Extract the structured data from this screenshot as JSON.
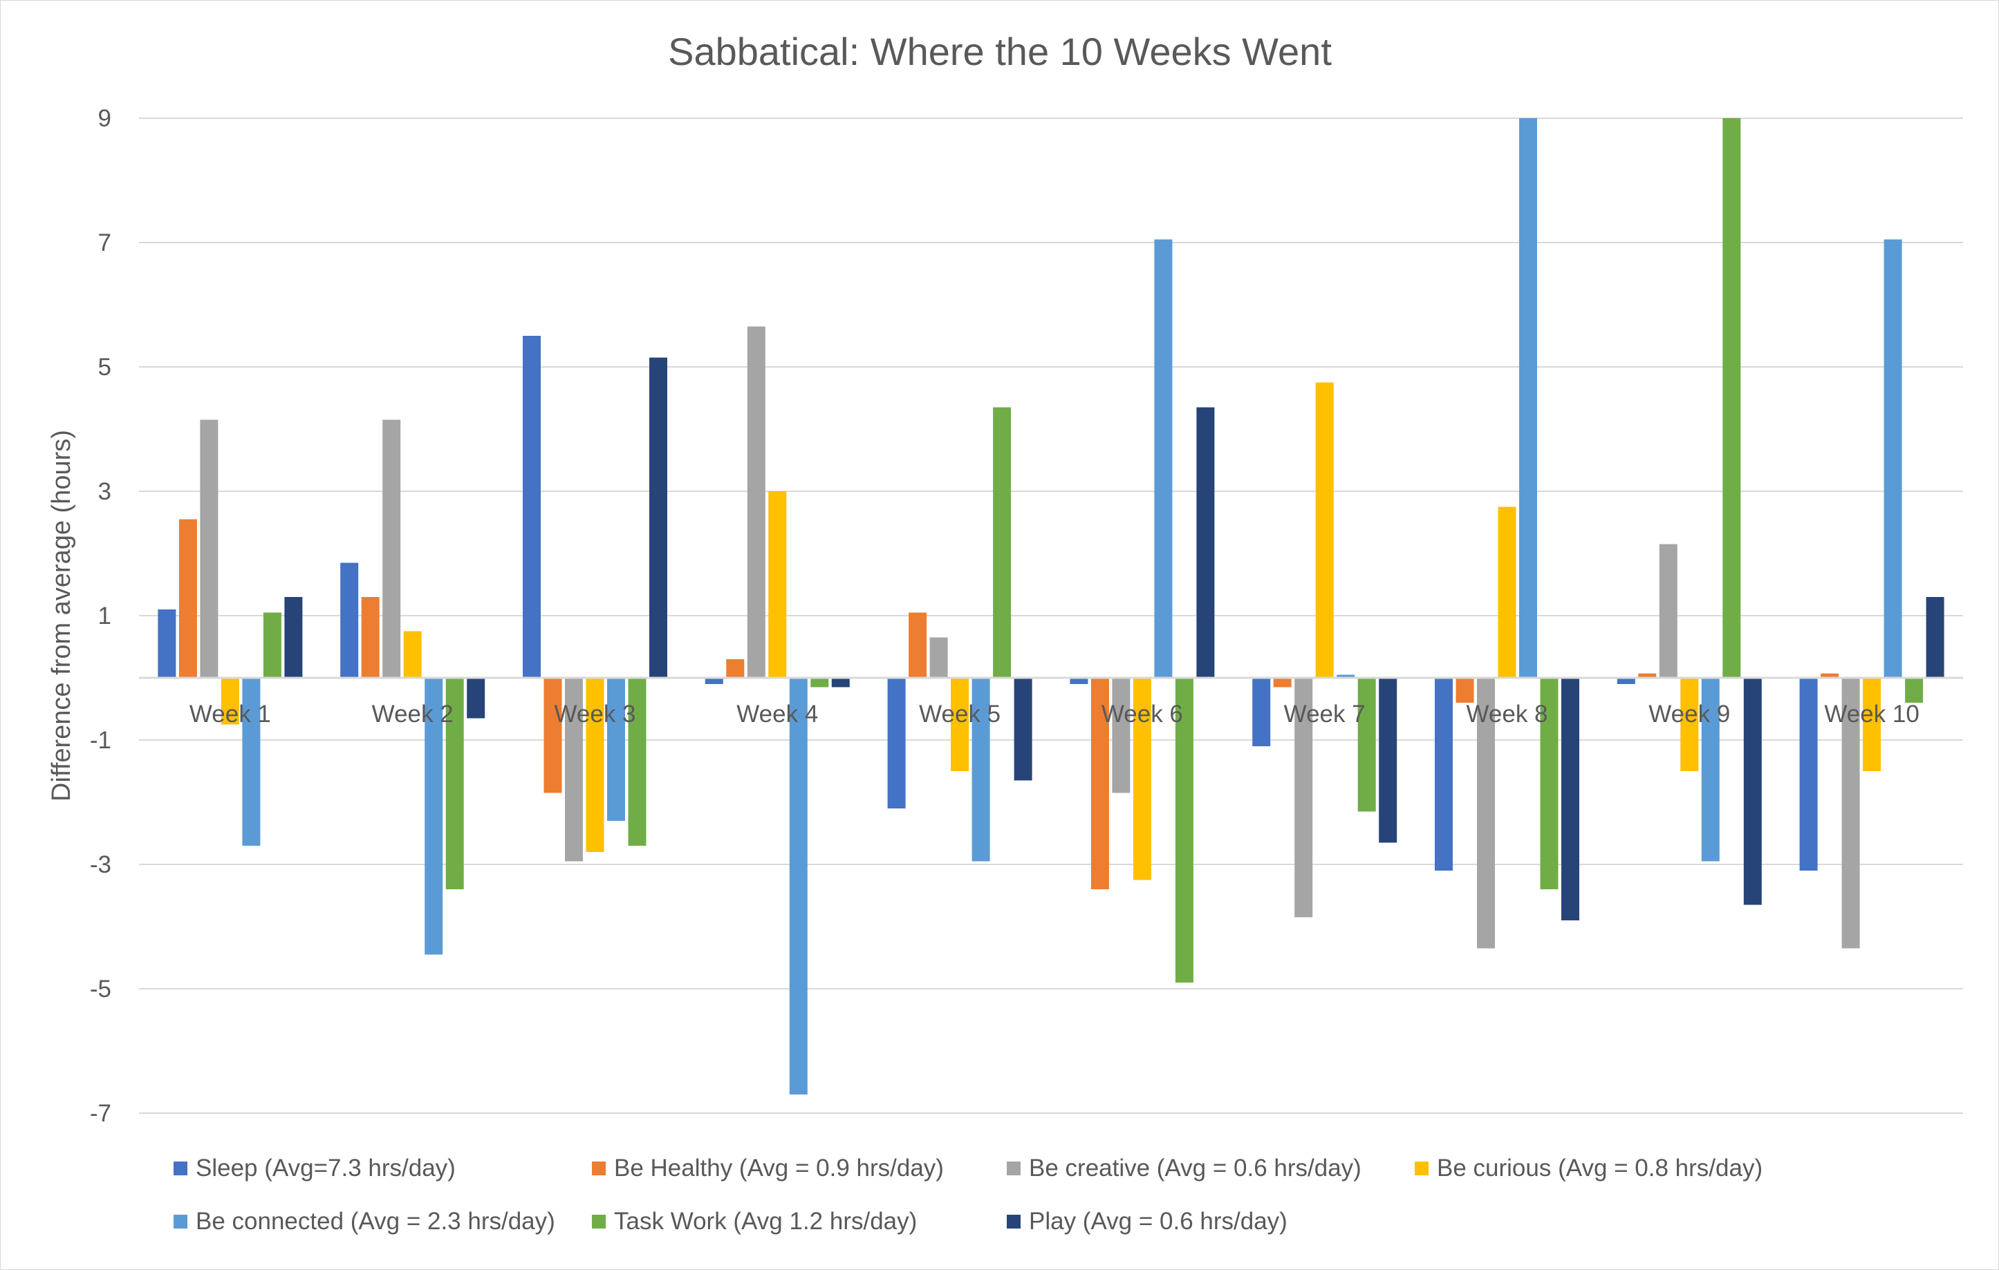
{
  "chart_data": {
    "type": "bar",
    "title": "Sabbatical: Where the 10 Weeks Went",
    "xlabel": "",
    "ylabel": "Difference from average (hours)",
    "ylim": [
      -7,
      9
    ],
    "yticks": [
      9,
      7,
      5,
      3,
      1,
      -1,
      -3,
      -5,
      -7
    ],
    "grid": true,
    "legend_position": "bottom",
    "categories": [
      "Week 1",
      "Week 2",
      "Week 3",
      "Week 4",
      "Week 5",
      "Week 6",
      "Week 7",
      "Week 8",
      "Week 9",
      "Week 10"
    ],
    "series": [
      {
        "name": "Sleep (Avg=7.3 hrs/day)",
        "color": "#4472C4",
        "values": [
          1.1,
          1.85,
          5.5,
          -0.1,
          -2.1,
          -0.1,
          -1.1,
          -3.1,
          -0.1,
          -3.1
        ]
      },
      {
        "name": "Be Healthy (Avg = 0.9 hrs/day)",
        "color": "#ED7D31",
        "values": [
          2.55,
          1.3,
          -1.85,
          0.3,
          1.05,
          -3.4,
          -0.15,
          -0.4,
          0.07,
          0.07
        ]
      },
      {
        "name": "Be creative (Avg = 0.6 hrs/day)",
        "color": "#A5A5A5",
        "values": [
          4.15,
          4.15,
          -2.95,
          5.65,
          0.65,
          -1.85,
          -3.85,
          -4.35,
          2.15,
          -4.35
        ]
      },
      {
        "name": "Be curious (Avg = 0.8 hrs/day)",
        "color": "#FFC000",
        "values": [
          -0.75,
          0.75,
          -2.8,
          3.0,
          -1.5,
          -3.25,
          4.75,
          2.75,
          -1.5,
          -1.5
        ]
      },
      {
        "name": "Be connected (Avg = 2.3 hrs/day)",
        "color": "#5B9BD5",
        "values": [
          -2.7,
          -4.45,
          -2.3,
          -6.7,
          -2.95,
          7.05,
          0.05,
          9.0,
          -2.95,
          7.05
        ]
      },
      {
        "name": "Task Work (Avg 1.2 hrs/day)",
        "color": "#70AD47",
        "values": [
          1.05,
          -3.4,
          -2.7,
          -0.15,
          4.35,
          -4.9,
          -2.15,
          -3.4,
          9.0,
          -0.4
        ]
      },
      {
        "name": "Play (Avg = 0.6 hrs/day)",
        "color": "#264478",
        "values": [
          1.3,
          -0.65,
          5.15,
          -0.15,
          -1.65,
          4.35,
          -2.65,
          -3.9,
          -3.65,
          1.3
        ]
      }
    ]
  }
}
